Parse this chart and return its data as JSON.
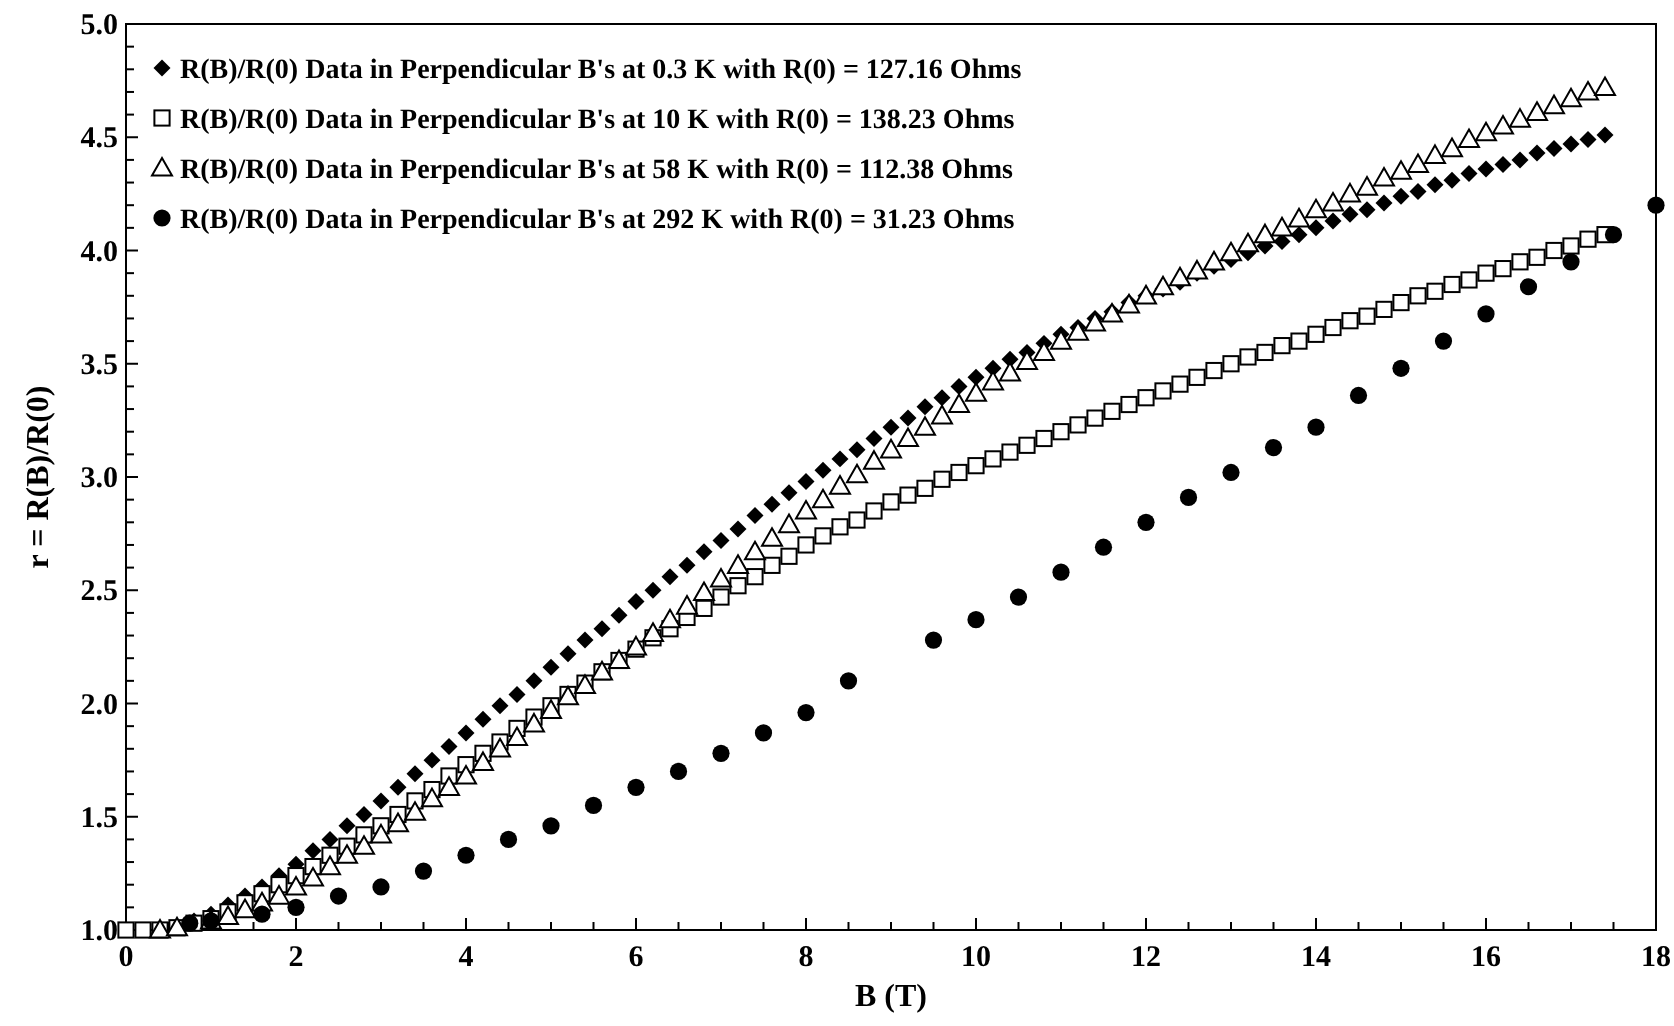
{
  "chart_data": {
    "type": "scatter",
    "xlabel": "B (T)",
    "ylabel": "r = R(B)/R(0)",
    "legend": "top left",
    "grid": false,
    "xlim": [
      0,
      18
    ],
    "ylim": [
      1,
      5
    ],
    "xticks": [
      0,
      {
        "value": 0.5,
        "label": null
      },
      {
        "value": 1,
        "label": null
      },
      {
        "value": 1.5,
        "label": null
      },
      2,
      {
        "value": 2.5,
        "label": null
      },
      {
        "value": 3,
        "label": null
      },
      {
        "value": 3.5,
        "label": null
      },
      4,
      {
        "value": 4.5,
        "label": null
      },
      {
        "value": 5,
        "label": null
      },
      {
        "value": 5.5,
        "label": null
      },
      6,
      {
        "value": 6.5,
        "label": null
      },
      {
        "value": 7,
        "label": null
      },
      {
        "value": 7.5,
        "label": null
      },
      8,
      {
        "value": 8.5,
        "label": null
      },
      {
        "value": 9,
        "label": null
      },
      {
        "value": 9.5,
        "label": null
      },
      10,
      {
        "value": 10.5,
        "label": null
      },
      {
        "value": 11,
        "label": null
      },
      {
        "value": 11.5,
        "label": null
      },
      12,
      {
        "value": 12.5,
        "label": null
      },
      {
        "value": 13,
        "label": null
      },
      {
        "value": 13.5,
        "label": null
      },
      14,
      {
        "value": 14.5,
        "label": null
      },
      {
        "value": 15,
        "label": null
      },
      {
        "value": 15.5,
        "label": null
      },
      16,
      {
        "value": 16.5,
        "label": null
      },
      {
        "value": 17,
        "label": null
      },
      {
        "value": 17.5,
        "label": null
      },
      18
    ],
    "yticks": [
      {
        "value": 1,
        "label": "1.0"
      },
      {
        "value": 1.1,
        "label": null
      },
      {
        "value": 1.2,
        "label": null
      },
      {
        "value": 1.3,
        "label": null
      },
      {
        "value": 1.4,
        "label": null
      },
      {
        "value": 1.5,
        "label": "1.5"
      },
      {
        "value": 1.6,
        "label": null
      },
      {
        "value": 1.7,
        "label": null
      },
      {
        "value": 1.8,
        "label": null
      },
      {
        "value": 1.9,
        "label": null
      },
      {
        "value": 2,
        "label": "2.0"
      },
      {
        "value": 2.1,
        "label": null
      },
      {
        "value": 2.2,
        "label": null
      },
      {
        "value": 2.3,
        "label": null
      },
      {
        "value": 2.4,
        "label": null
      },
      {
        "value": 2.5,
        "label": "2.5"
      },
      {
        "value": 2.6,
        "label": null
      },
      {
        "value": 2.7,
        "label": null
      },
      {
        "value": 2.8,
        "label": null
      },
      {
        "value": 2.9,
        "label": null
      },
      {
        "value": 3,
        "label": "3.0"
      },
      {
        "value": 3.1,
        "label": null
      },
      {
        "value": 3.2,
        "label": null
      },
      {
        "value": 3.3,
        "label": null
      },
      {
        "value": 3.4,
        "label": null
      },
      {
        "value": 3.5,
        "label": "3.5"
      },
      {
        "value": 3.6,
        "label": null
      },
      {
        "value": 3.7,
        "label": null
      },
      {
        "value": 3.8,
        "label": null
      },
      {
        "value": 3.9,
        "label": null
      },
      {
        "value": 4,
        "label": "4.0"
      },
      {
        "value": 4.1,
        "label": null
      },
      {
        "value": 4.2,
        "label": null
      },
      {
        "value": 4.3,
        "label": null
      },
      {
        "value": 4.4,
        "label": null
      },
      {
        "value": 4.5,
        "label": "4.5"
      },
      {
        "value": 4.6,
        "label": null
      },
      {
        "value": 4.7,
        "label": null
      },
      {
        "value": 4.8,
        "label": null
      },
      {
        "value": 4.9,
        "label": null
      },
      {
        "value": 5,
        "label": "5.0"
      }
    ],
    "x": [
      0,
      0.2,
      0.4,
      0.6,
      0.8,
      1,
      1.2,
      1.4,
      1.6,
      1.8,
      2,
      2.2,
      2.4,
      2.6,
      2.8,
      3,
      3.2,
      3.4,
      3.6,
      3.8,
      4,
      4.2,
      4.4,
      4.6,
      4.8,
      5,
      5.2,
      5.4,
      5.6,
      5.8,
      6,
      6.2,
      6.4,
      6.6,
      6.8,
      7,
      7.2,
      7.4,
      7.6,
      7.8,
      8,
      8.2,
      8.4,
      8.6,
      8.8,
      9,
      9.2,
      9.4,
      9.6,
      9.8,
      10,
      10.2,
      10.4,
      10.6,
      10.8,
      11,
      11.2,
      11.4,
      11.6,
      11.8,
      12,
      12.2,
      12.4,
      12.6,
      12.8,
      13,
      13.2,
      13.4,
      13.6,
      13.8,
      14,
      14.2,
      14.4,
      14.6,
      14.8,
      15,
      15.2,
      15.4,
      15.6,
      15.8,
      16,
      16.2,
      16.4,
      16.6,
      16.8,
      17,
      17.2,
      17.4
    ],
    "series": [
      {
        "name": "R(B)/R(0) Data in Perpendicular B's at 0.3 K with R(0) = 127.16 Ohms",
        "color": "#000000",
        "marker": "diamond",
        "values": [
          null,
          null,
          null,
          null,
          1.04,
          1.07,
          1.11,
          1.15,
          1.19,
          1.24,
          1.29,
          1.35,
          1.4,
          1.46,
          1.51,
          1.57,
          1.63,
          1.69,
          1.75,
          1.81,
          1.87,
          1.93,
          1.99,
          2.04,
          2.1,
          2.16,
          2.22,
          2.28,
          2.33,
          2.39,
          2.45,
          2.5,
          2.56,
          2.61,
          2.67,
          2.72,
          2.77,
          2.83,
          2.88,
          2.93,
          2.98,
          3.03,
          3.08,
          3.12,
          3.17,
          3.22,
          3.26,
          3.31,
          3.35,
          3.4,
          3.44,
          3.48,
          3.52,
          3.55,
          3.59,
          3.63,
          3.66,
          3.7,
          3.73,
          3.77,
          3.8,
          3.83,
          3.86,
          3.9,
          3.93,
          3.96,
          3.99,
          4.02,
          4.04,
          4.07,
          4.1,
          4.13,
          4.16,
          4.18,
          4.21,
          4.24,
          4.26,
          4.29,
          4.31,
          4.34,
          4.36,
          4.38,
          4.4,
          4.43,
          4.45,
          4.47,
          4.49,
          4.51
        ]
      },
      {
        "name": "R(B)/R(0) Data in Perpendicular B's at 10 K with R(0) = 138.23 Ohms",
        "color": "#000000",
        "marker": "square",
        "values": [
          1.0,
          1.0,
          1.0,
          1.01,
          1.03,
          1.05,
          1.08,
          1.12,
          1.16,
          1.2,
          1.24,
          1.28,
          1.33,
          1.37,
          1.42,
          1.46,
          1.51,
          1.57,
          1.62,
          1.68,
          1.73,
          1.78,
          1.83,
          1.89,
          1.94,
          1.99,
          2.04,
          2.09,
          2.14,
          2.19,
          2.24,
          2.29,
          2.33,
          2.38,
          2.42,
          2.47,
          2.52,
          2.56,
          2.61,
          2.65,
          2.7,
          2.74,
          2.78,
          2.81,
          2.85,
          2.89,
          2.92,
          2.95,
          2.99,
          3.02,
          3.05,
          3.08,
          3.11,
          3.14,
          3.17,
          3.2,
          3.23,
          3.26,
          3.29,
          3.32,
          3.35,
          3.38,
          3.41,
          3.44,
          3.47,
          3.5,
          3.53,
          3.55,
          3.58,
          3.6,
          3.63,
          3.66,
          3.69,
          3.71,
          3.74,
          3.77,
          3.8,
          3.82,
          3.85,
          3.87,
          3.9,
          3.92,
          3.95,
          3.97,
          4.0,
          4.02,
          4.05,
          4.07
        ]
      },
      {
        "name": "R(B)/R(0) Data in Perpendicular B's at 58 K with R(0) = 112.38 Ohms",
        "color": "#000000",
        "marker": "triangle",
        "values": [
          null,
          null,
          1.0,
          1.01,
          null,
          1.04,
          1.06,
          1.09,
          1.12,
          1.15,
          1.19,
          1.23,
          1.28,
          1.33,
          1.37,
          1.42,
          1.47,
          1.52,
          1.58,
          1.63,
          1.68,
          1.74,
          1.8,
          1.85,
          1.91,
          1.97,
          2.03,
          2.08,
          2.14,
          2.19,
          2.25,
          2.31,
          2.37,
          2.43,
          2.49,
          2.55,
          2.61,
          2.67,
          2.73,
          2.79,
          2.85,
          2.9,
          2.96,
          3.01,
          3.07,
          3.12,
          3.17,
          3.22,
          3.27,
          3.32,
          3.37,
          3.42,
          3.46,
          3.51,
          3.55,
          3.6,
          3.64,
          3.68,
          3.72,
          3.76,
          3.8,
          3.84,
          3.88,
          3.91,
          3.95,
          3.99,
          4.03,
          4.07,
          4.1,
          4.14,
          4.18,
          4.21,
          4.25,
          4.28,
          4.32,
          4.35,
          4.38,
          4.42,
          4.45,
          4.49,
          4.52,
          4.55,
          4.58,
          4.61,
          4.64,
          4.67,
          4.7,
          4.72
        ]
      },
      {
        "name": "R(B)/R(0) Data in Perpendicular B's at 292 K with R(0) = 31.23 Ohms",
        "color": "#000000",
        "marker": "circle",
        "x": [
          0.75,
          1,
          1.6,
          2,
          2.5,
          3,
          3.5,
          4,
          4.5,
          5,
          5.5,
          6,
          6.5,
          7,
          7.5,
          8,
          8.5,
          9.5,
          10,
          10.5,
          11,
          11.5,
          12,
          12.5,
          13,
          13.5,
          14,
          14.5,
          15,
          15.5,
          16,
          16.5,
          17,
          17.5,
          18
        ],
        "values": [
          1.03,
          1.04,
          1.07,
          1.1,
          1.15,
          1.19,
          1.26,
          1.33,
          1.4,
          1.46,
          1.55,
          1.63,
          1.7,
          1.78,
          1.87,
          1.96,
          2.1,
          2.28,
          2.37,
          2.47,
          2.58,
          2.69,
          2.8,
          2.91,
          3.02,
          3.13,
          3.22,
          3.36,
          3.48,
          3.6,
          3.72,
          3.84,
          3.95,
          4.07,
          4.2
        ]
      }
    ]
  }
}
